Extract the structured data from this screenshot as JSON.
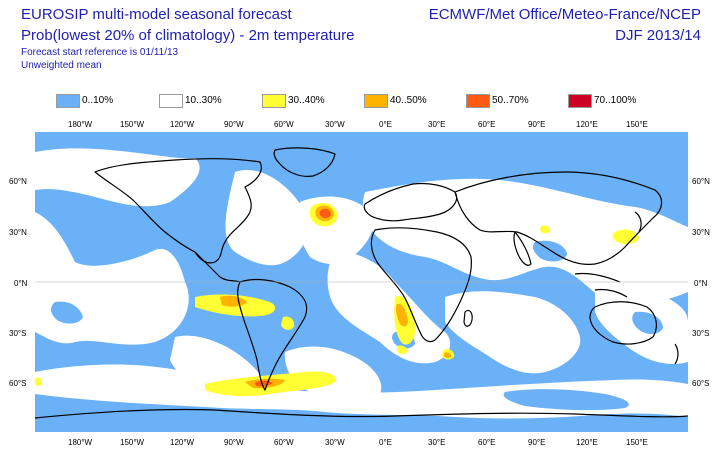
{
  "header": {
    "title": "EUROSIP multi-model seasonal forecast",
    "subtitle": "Prob(lowest 20% of climatology) - 2m temperature",
    "start_reference": "Forecast start reference is 01/11/13",
    "weighting": "Unweighted mean",
    "centres": "ECMWF/Met Office/Meteo-France/NCEP",
    "season": "DJF 2013/14"
  },
  "legend": [
    {
      "label": "0..10%",
      "color": "#6bb1f7"
    },
    {
      "label": "10..30%",
      "color": "#ffffff"
    },
    {
      "label": "30..40%",
      "color": "#ffff33"
    },
    {
      "label": "40..50%",
      "color": "#ffb300"
    },
    {
      "label": "50..70%",
      "color": "#ff5a14"
    },
    {
      "label": "70..100%",
      "color": "#cc0022"
    }
  ],
  "lon_ticks": [
    "180°W",
    "150°W",
    "120°W",
    "90°W",
    "60°W",
    "30°W",
    "0°E",
    "30°E",
    "60°E",
    "90°E",
    "120°E",
    "150°E"
  ],
  "lat_ticks": [
    "60°N",
    "30°N",
    "0°N",
    "30°S",
    "60°S"
  ],
  "colors": {
    "low": "#6bb1f7",
    "mid": "#ffffff",
    "yellow": "#ffff33",
    "orange": "#ffb300",
    "red_orange": "#ff5a14",
    "coast": "#000000",
    "text": "#1f1fb0"
  }
}
